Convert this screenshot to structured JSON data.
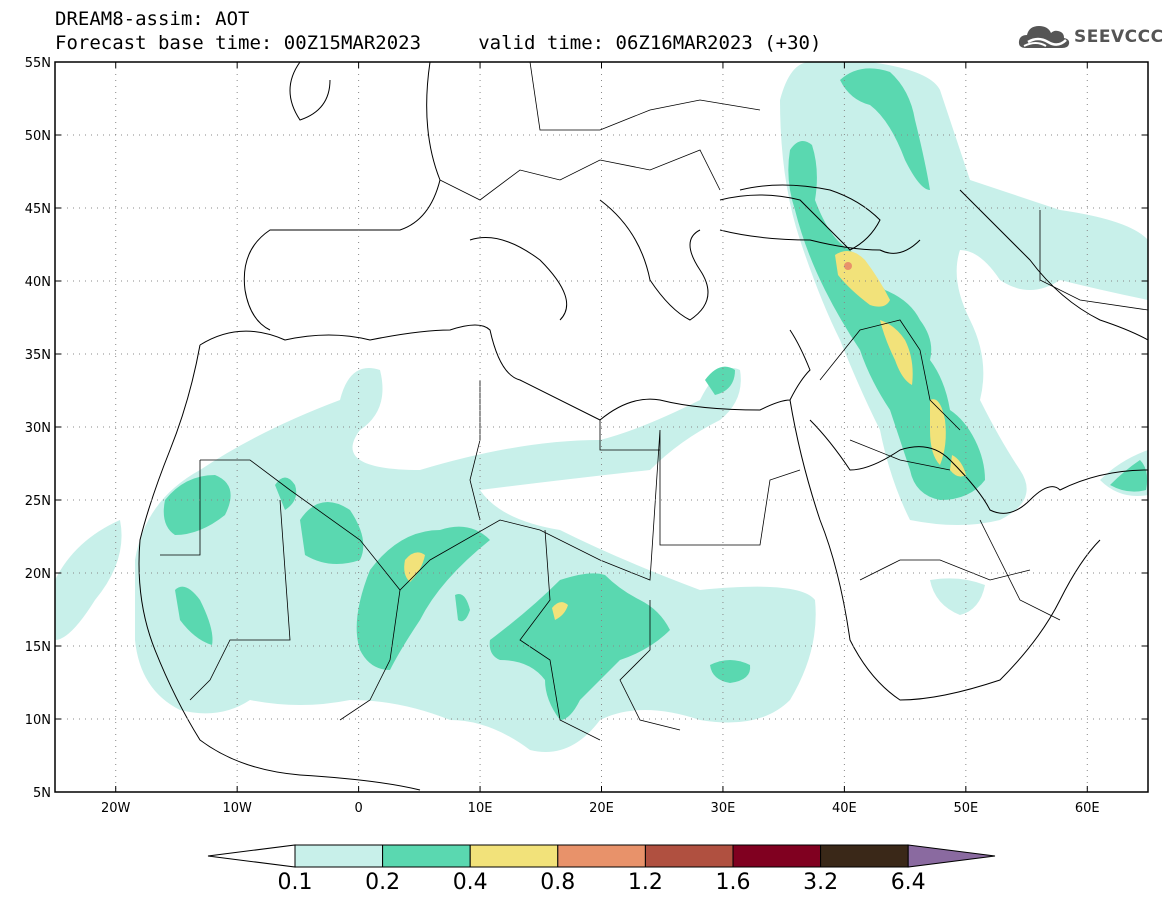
{
  "header": {
    "line1": "DREAM8-assim: AOT",
    "line2": "Forecast base time: 00Z15MAR2023     valid time: 06Z16MAR2023 (+30)"
  },
  "logo": {
    "text": "SEEVCCC",
    "icon": "cloud-icon"
  },
  "map": {
    "lon_range": [
      -25,
      65
    ],
    "lat_range": [
      5,
      55
    ],
    "lat_ticks": [
      {
        "value": 55,
        "label": "55N"
      },
      {
        "value": 50,
        "label": "50N"
      },
      {
        "value": 45,
        "label": "45N"
      },
      {
        "value": 40,
        "label": "40N"
      },
      {
        "value": 35,
        "label": "35N"
      },
      {
        "value": 30,
        "label": "30N"
      },
      {
        "value": 25,
        "label": "25N"
      },
      {
        "value": 20,
        "label": "20N"
      },
      {
        "value": 15,
        "label": "15N"
      },
      {
        "value": 10,
        "label": "10N"
      },
      {
        "value": 5,
        "label": "5N"
      }
    ],
    "lon_ticks": [
      {
        "value": -20,
        "label": "20W"
      },
      {
        "value": -10,
        "label": "10W"
      },
      {
        "value": 0,
        "label": "0"
      },
      {
        "value": 10,
        "label": "10E"
      },
      {
        "value": 20,
        "label": "20E"
      },
      {
        "value": 30,
        "label": "30E"
      },
      {
        "value": 40,
        "label": "40E"
      },
      {
        "value": 50,
        "label": "50E"
      },
      {
        "value": 60,
        "label": "60E"
      }
    ],
    "gridlines": "dotted"
  },
  "colorbar": {
    "labels": [
      "0.1",
      "0.2",
      "0.4",
      "0.8",
      "1.2",
      "1.6",
      "3.2",
      "6.4"
    ],
    "colors": [
      "#ffffff",
      "#c8f0ea",
      "#5ad8b0",
      "#f2e27a",
      "#e8926a",
      "#b05040",
      "#800020",
      "#3a2818",
      "#8a6aa0"
    ]
  }
}
